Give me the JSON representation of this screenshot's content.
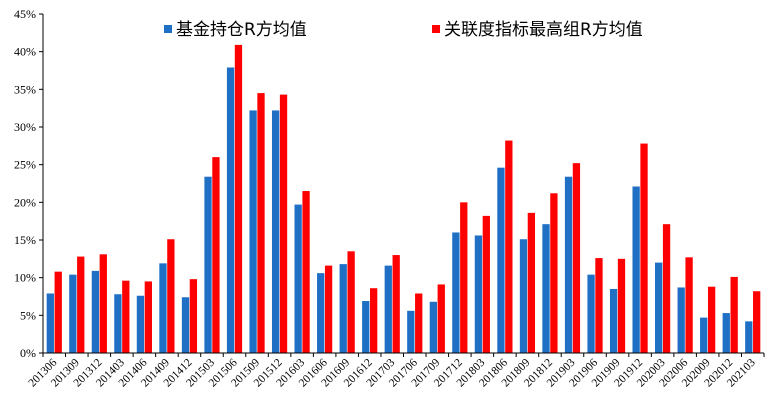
{
  "chart_data": {
    "type": "bar",
    "title": "",
    "xlabel": "",
    "ylabel": "",
    "ylim": [
      0,
      45
    ],
    "y_tick_labels": [
      "0%",
      "5%",
      "10%",
      "15%",
      "20%",
      "25%",
      "30%",
      "35%",
      "40%",
      "45%"
    ],
    "grid": false,
    "legend_position": "top",
    "categories": [
      "201306",
      "201309",
      "201312",
      "201403",
      "201406",
      "201409",
      "201412",
      "201503",
      "201506",
      "201509",
      "201512",
      "201603",
      "201606",
      "201609",
      "201612",
      "201703",
      "201706",
      "201709",
      "201712",
      "201803",
      "201806",
      "201809",
      "201812",
      "201903",
      "201906",
      "201909",
      "201912",
      "202003",
      "202006",
      "202009",
      "202012",
      "202103"
    ],
    "series": [
      {
        "name": "基金持仓R方均值",
        "color": "#1f6fc5",
        "values": [
          7.9,
          10.4,
          10.9,
          7.8,
          7.6,
          11.9,
          7.4,
          23.4,
          37.9,
          32.2,
          32.2,
          19.7,
          10.6,
          11.8,
          6.9,
          11.6,
          5.6,
          6.8,
          16.0,
          15.6,
          24.6,
          15.1,
          17.1,
          23.4,
          10.4,
          8.5,
          22.1,
          12.0,
          8.7,
          4.7,
          5.3,
          4.2
        ]
      },
      {
        "name": "关联度指标最高组R方均值",
        "color": "#ff0000",
        "values": [
          10.8,
          12.8,
          13.1,
          9.6,
          9.5,
          15.1,
          9.8,
          26.0,
          40.9,
          34.5,
          34.3,
          21.5,
          11.6,
          13.5,
          8.6,
          13.0,
          7.9,
          9.1,
          20.0,
          18.2,
          28.2,
          18.6,
          21.2,
          25.2,
          12.6,
          12.5,
          27.8,
          17.1,
          12.7,
          8.8,
          10.1,
          8.2
        ]
      }
    ]
  }
}
